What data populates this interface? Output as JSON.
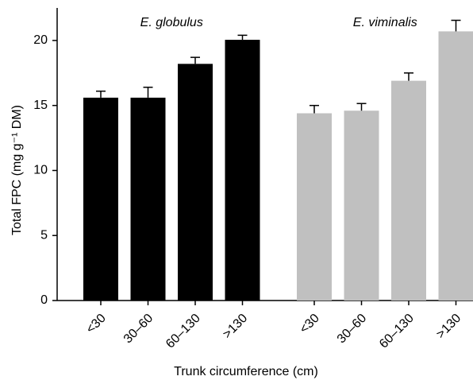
{
  "chart_data": {
    "type": "bar",
    "ylabel": "Total FPC (mg g⁻¹ DM)",
    "xlabel": "Trunk circumference (cm)",
    "categories": [
      "<30",
      "30–60",
      "60–130",
      ">130"
    ],
    "series": [
      {
        "name": "E. globulus",
        "color": "#000000",
        "values": [
          15.6,
          15.6,
          18.2,
          20.05
        ],
        "errors": [
          0.5,
          0.8,
          0.5,
          0.35
        ]
      },
      {
        "name": "E. viminalis",
        "color": "#c0c0c0",
        "values": [
          14.4,
          14.6,
          16.9,
          20.7
        ],
        "errors": [
          0.6,
          0.55,
          0.6,
          0.85
        ]
      }
    ],
    "ylim": [
      0,
      22.5
    ],
    "yticks": [
      0,
      5,
      10,
      15,
      20
    ],
    "grid": false
  }
}
